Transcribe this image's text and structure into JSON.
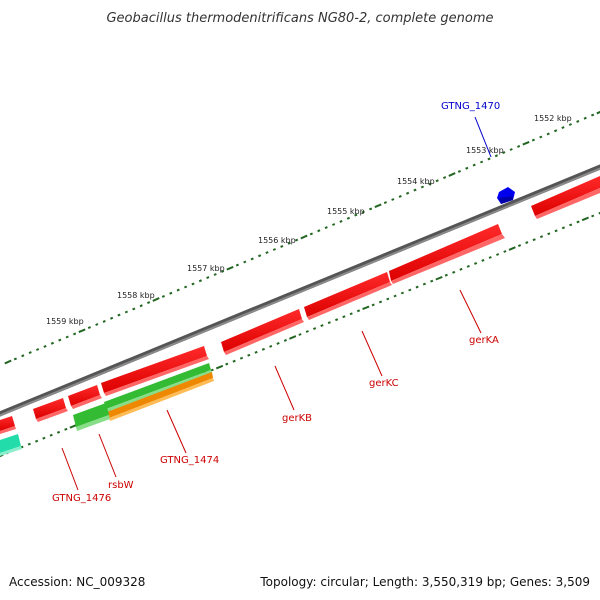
{
  "title": "Geobacillus thermodenitrificans NG80-2, complete genome",
  "footer": {
    "accession": "Accession: NC_009328",
    "summary": "Topology: circular; Length: 3,550,319 bp; Genes: 3,509"
  },
  "ticks": [
    "1552 kbp",
    "1553 kbp",
    "1554 kbp",
    "1555 kbp",
    "1556 kbp",
    "1557 kbp",
    "1558 kbp",
    "1559 kbp"
  ],
  "genes": [
    {
      "name": "GTNG_1470",
      "color": "#0000cc",
      "strand": "+"
    },
    {
      "name": "gerKA",
      "color": "#cc0000",
      "strand": "-"
    },
    {
      "name": "gerKC",
      "color": "#cc0000",
      "strand": "-"
    },
    {
      "name": "gerKB",
      "color": "#cc0000",
      "strand": "-"
    },
    {
      "name": "GTNG_1474",
      "color": "#cc0000",
      "strand": "-"
    },
    {
      "name": "rsbW",
      "color": "#cc0000",
      "strand": "-"
    },
    {
      "name": "GTNG_1476",
      "color": "#cc0000",
      "strand": "-"
    }
  ],
  "colors": {
    "backbone": "#777777",
    "cds": "#ee0000",
    "rna_green": "#33aa33",
    "rna_orange": "#ee8800",
    "rna_teal": "#22ddaa",
    "tick": "#226622",
    "plus_label": "#0000cc",
    "minus_label": "#cc0000"
  }
}
